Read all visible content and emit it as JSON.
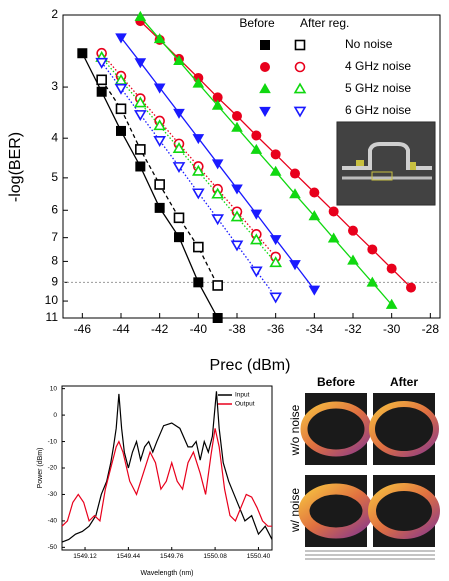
{
  "chart_data": [
    {
      "type": "line",
      "x_label": "Prec (dBm)",
      "y_label": "-log(BER)",
      "xlim": [
        -47,
        -27.5
      ],
      "xticks": [
        -46,
        -44,
        -42,
        -40,
        -38,
        -36,
        -34,
        -32,
        -30,
        -28
      ],
      "ylim": [
        2,
        11
      ],
      "yticks": [
        2,
        3,
        4,
        5,
        6,
        7,
        8,
        9,
        10,
        11
      ],
      "y_scale": "log",
      "y_reversed": true,
      "reference_line": 9,
      "legend": {
        "headers": [
          "Before",
          "After reg."
        ],
        "rows": [
          "No noise",
          "4 GHz noise",
          "5 GHz noise",
          "6 GHz noise"
        ]
      },
      "series": [
        {
          "color": "#000000",
          "marker": "square",
          "filled": true,
          "line_style": "solid",
          "x": [
            -46,
            -45,
            -44,
            -43,
            -42,
            -41,
            -40,
            -39
          ],
          "values": [
            2.48,
            3.08,
            3.84,
            4.69,
            5.92,
            6.98,
            9.0,
            11.0
          ]
        },
        {
          "color": "#000000",
          "marker": "square",
          "filled": false,
          "line_style": "dashed",
          "x": [
            -45,
            -44,
            -43,
            -42,
            -41,
            -40,
            -39
          ],
          "values": [
            2.88,
            3.39,
            4.26,
            5.19,
            6.26,
            7.38,
            9.16
          ]
        },
        {
          "color": "#e8001c",
          "marker": "circle",
          "filled": true,
          "line_style": "solid",
          "x": [
            -43,
            -42,
            -41,
            -40,
            -39,
            -38,
            -37,
            -36,
            -35,
            -34,
            -33,
            -32,
            -31,
            -30,
            -29
          ],
          "values": [
            2.07,
            2.3,
            2.56,
            2.85,
            3.18,
            3.53,
            3.94,
            4.38,
            4.88,
            5.43,
            6.04,
            6.73,
            7.48,
            8.33,
            9.27
          ]
        },
        {
          "color": "#e8001c",
          "marker": "circle",
          "filled": false,
          "line_style": "dotted",
          "x": [
            -45,
            -44,
            -43,
            -42,
            -41,
            -40,
            -39,
            -38,
            -37,
            -36
          ],
          "values": [
            2.48,
            2.82,
            3.2,
            3.63,
            4.13,
            4.69,
            5.33,
            6.05,
            6.87,
            7.8
          ]
        },
        {
          "color": "#10d810",
          "marker": "triangle-up",
          "filled": true,
          "line_style": "solid",
          "x": [
            -43,
            -42,
            -41,
            -40,
            -39,
            -38,
            -37,
            -36,
            -35,
            -34,
            -33,
            -32,
            -31,
            -30
          ],
          "values": [
            2.02,
            2.29,
            2.59,
            2.94,
            3.33,
            3.77,
            4.27,
            4.83,
            5.48,
            6.2,
            7.03,
            7.96,
            9.01,
            10.21
          ]
        },
        {
          "color": "#10d810",
          "marker": "triangle-up",
          "filled": false,
          "line_style": "dotted",
          "x": [
            -45,
            -44,
            -43,
            -42,
            -41,
            -40,
            -39,
            -38,
            -37,
            -36
          ],
          "values": [
            2.54,
            2.89,
            3.28,
            3.73,
            4.24,
            4.82,
            5.48,
            6.23,
            7.09,
            8.06
          ]
        },
        {
          "color": "#1a1aff",
          "marker": "triangle-down",
          "filled": true,
          "line_style": "solid",
          "x": [
            -44,
            -43,
            -42,
            -41,
            -40,
            -39,
            -38,
            -37,
            -36,
            -35,
            -34
          ],
          "values": [
            2.27,
            2.61,
            3.01,
            3.47,
            4.0,
            4.61,
            5.31,
            6.12,
            7.06,
            8.13,
            9.38
          ]
        },
        {
          "color": "#1a1aff",
          "marker": "triangle-down",
          "filled": false,
          "line_style": "dotted",
          "x": [
            -45,
            -44,
            -43,
            -42,
            -41,
            -40,
            -39,
            -38,
            -37,
            -36
          ],
          "values": [
            2.61,
            3.02,
            3.5,
            4.05,
            4.69,
            5.44,
            6.29,
            7.29,
            8.44,
            9.77
          ]
        }
      ]
    },
    {
      "type": "line",
      "x_label": "Wavelength (nm)",
      "y_label": "Power (dBm)",
      "xlim": [
        1548.95,
        1550.5
      ],
      "xticks": [
        1549.12,
        1549.44,
        1549.76,
        1550.08,
        {
          "value": 1550.4,
          "label": "1550.40"
        }
      ],
      "ylim": [
        -51,
        11
      ],
      "yticks": [
        10,
        0,
        -10,
        -20,
        -30,
        -40,
        -50
      ],
      "series": [
        {
          "name": "Input",
          "color": "#000000",
          "line_style": "solid",
          "x": [
            1548.95,
            1549.0,
            1549.05,
            1549.1,
            1549.15,
            1549.2,
            1549.24,
            1549.28,
            1549.31,
            1549.33,
            1549.35,
            1549.37,
            1549.39,
            1549.41,
            1549.44,
            1549.47,
            1549.5,
            1549.53,
            1549.56,
            1549.59,
            1549.62,
            1549.65,
            1549.7,
            1549.76,
            1549.82,
            1549.88,
            1549.91,
            1549.94,
            1549.97,
            1550.0,
            1550.03,
            1550.06,
            1550.09,
            1550.11,
            1550.14,
            1550.18,
            1550.22,
            1550.26,
            1550.3,
            1550.35,
            1550.4,
            1550.45,
            1550.5
          ],
          "values": [
            -48,
            -47,
            -45,
            -44,
            -42,
            -38,
            -30,
            -25,
            -18,
            -12,
            -5,
            8,
            -5,
            -14,
            -20,
            -14,
            -10,
            -17,
            -12,
            -10,
            -14,
            -10,
            -4,
            -3,
            -5,
            -12,
            -12,
            -10,
            -17,
            -10,
            -14,
            -8,
            9,
            -5,
            -18,
            -25,
            -30,
            -35,
            -40,
            -38,
            -45,
            -42,
            -47
          ]
        },
        {
          "name": "Output",
          "color": "#e8001c",
          "line_style": "solid",
          "x": [
            1548.95,
            1548.99,
            1549.03,
            1549.07,
            1549.11,
            1549.15,
            1549.19,
            1549.23,
            1549.27,
            1549.31,
            1549.35,
            1549.37,
            1549.4,
            1549.45,
            1549.5,
            1549.55,
            1549.6,
            1549.64,
            1549.68,
            1549.72,
            1549.76,
            1549.8,
            1549.84,
            1549.88,
            1549.92,
            1549.97,
            1550.01,
            1550.05,
            1550.08,
            1550.11,
            1550.15,
            1550.19,
            1550.23,
            1550.27,
            1550.31,
            1550.35,
            1550.39,
            1550.43,
            1550.47,
            1550.5
          ],
          "values": [
            -42,
            -40,
            -33,
            -30,
            -33,
            -40,
            -38,
            -40,
            -28,
            -20,
            -12,
            -10,
            -14,
            -25,
            -30,
            -22,
            -14,
            -18,
            -28,
            -25,
            -18,
            -25,
            -28,
            -18,
            -14,
            -22,
            -30,
            -15,
            -5,
            -12,
            -28,
            -38,
            -40,
            -35,
            -30,
            -31,
            -35,
            -40,
            -42,
            -42
          ]
        }
      ]
    }
  ],
  "eye_diagrams": {
    "columns": [
      "Before",
      "After"
    ],
    "rows": [
      "w/o noise",
      "w/ noise"
    ]
  }
}
